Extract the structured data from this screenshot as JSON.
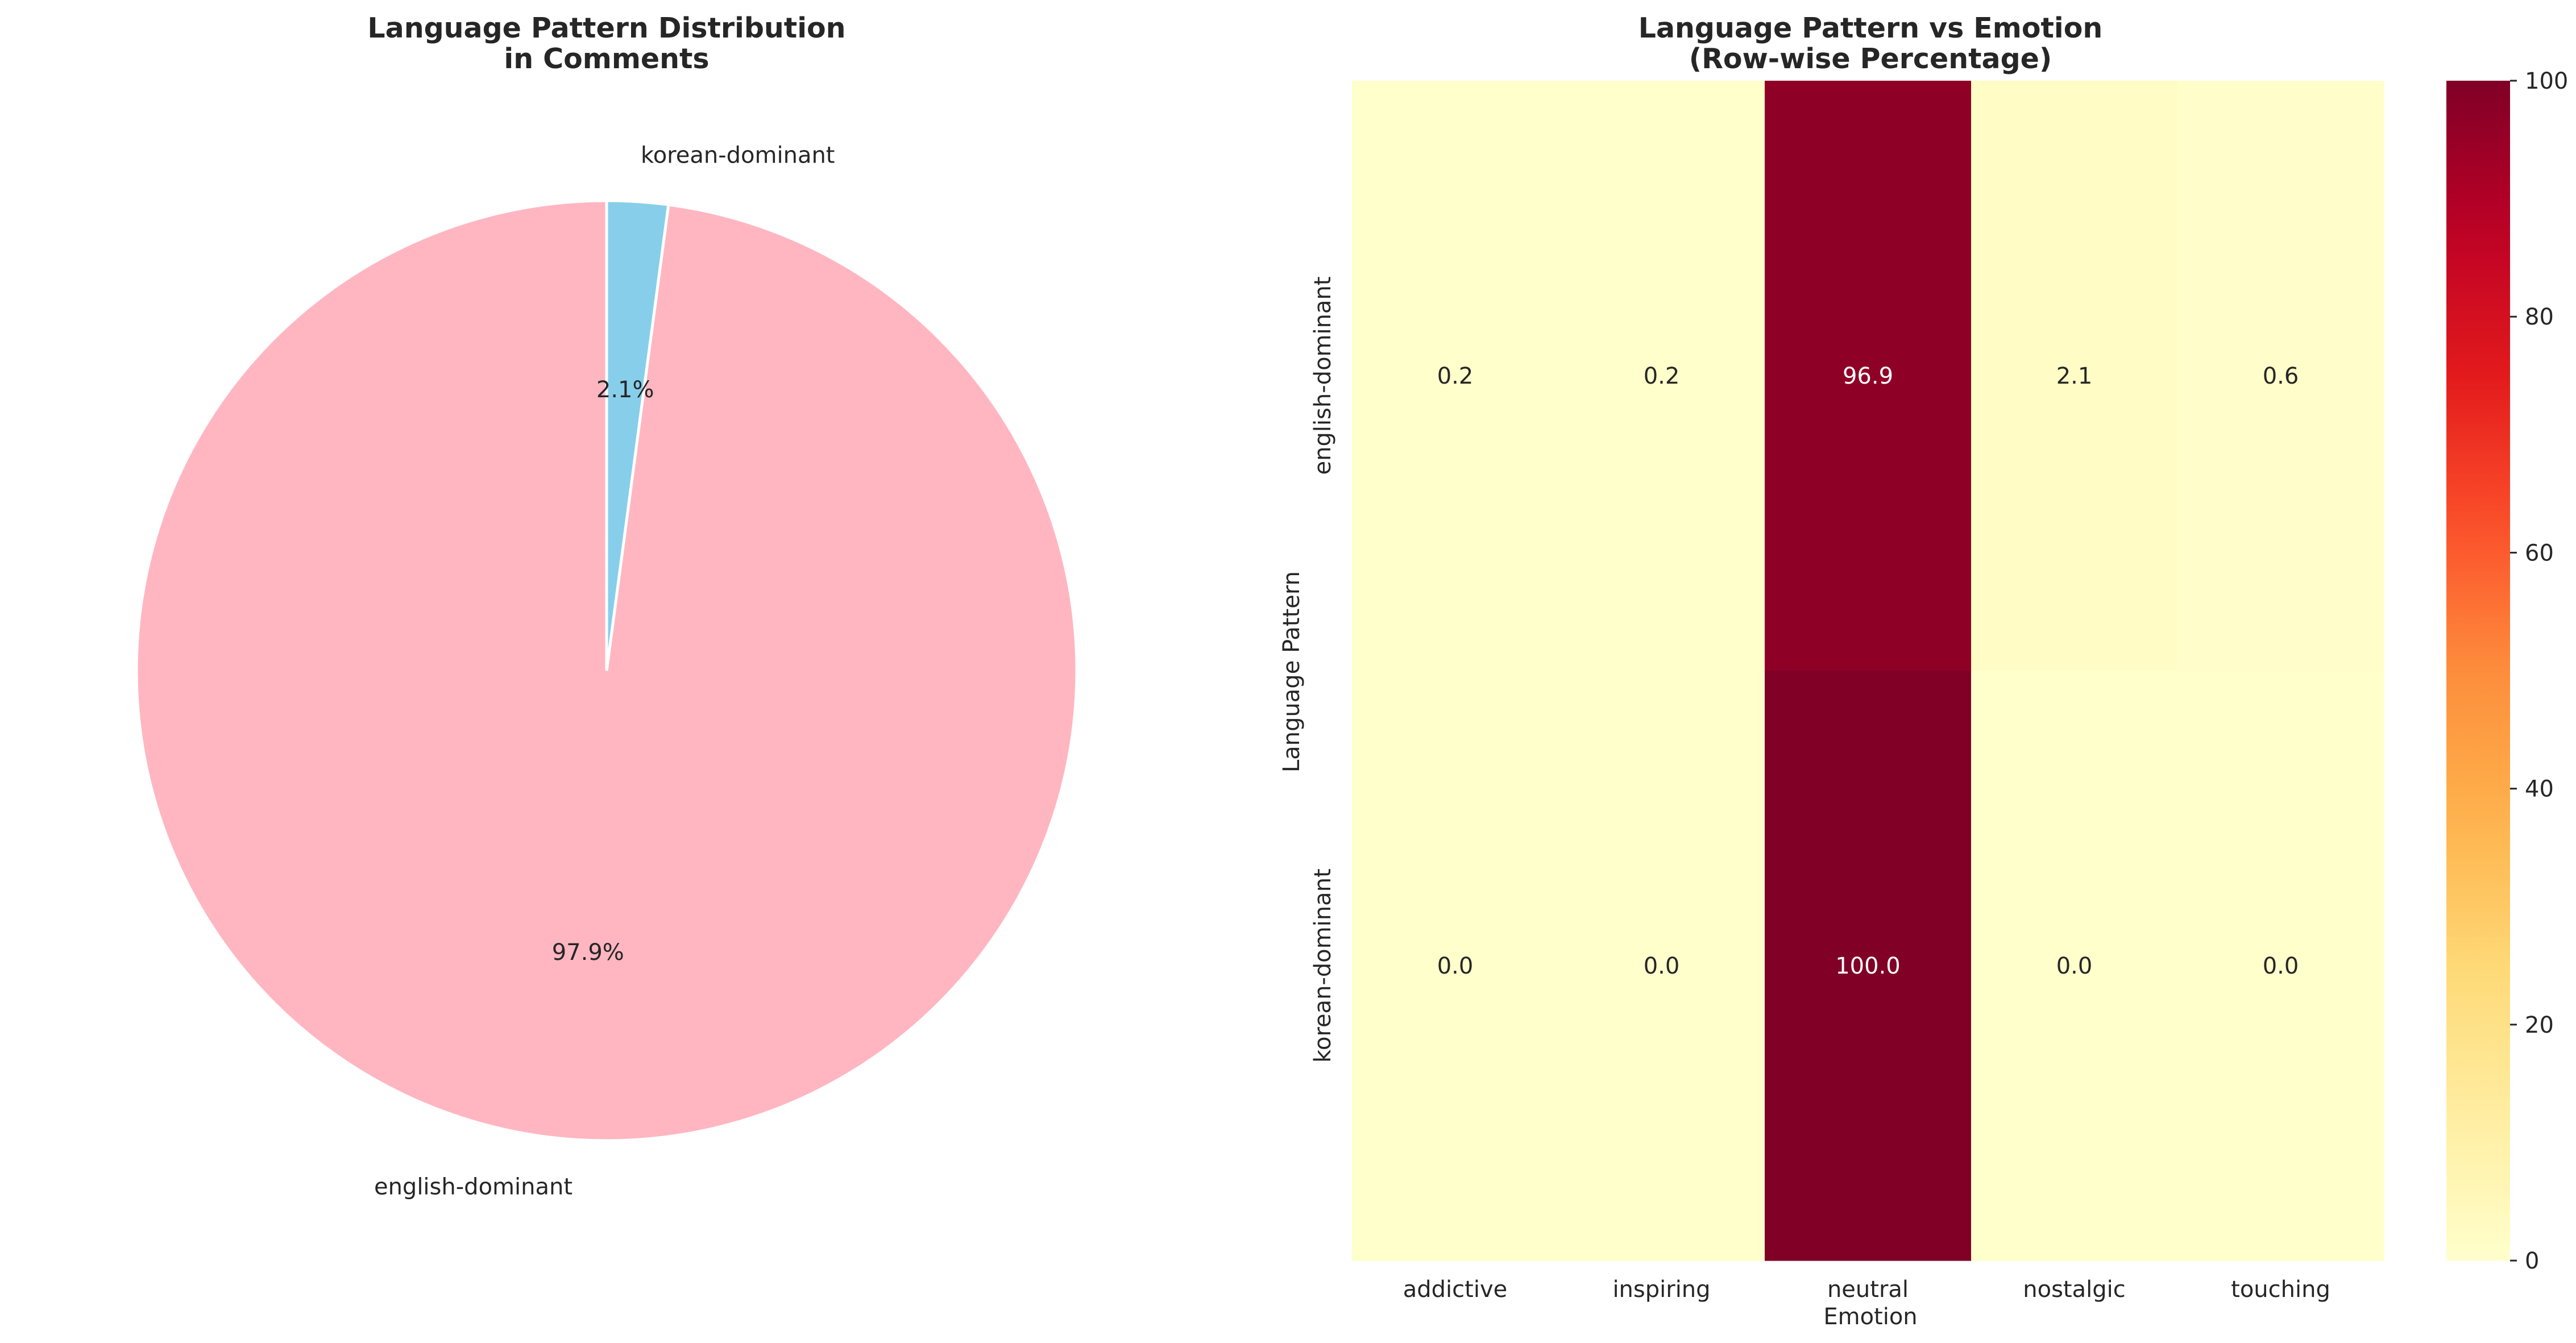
{
  "chart_data": [
    {
      "type": "pie",
      "title_line1": "Language Pattern Distribution",
      "title_line2": "in Comments",
      "slices": [
        {
          "label": "english-dominant",
          "value": 97.9,
          "pct_label": "97.9%",
          "color": "#ffb6c1"
        },
        {
          "label": "korean-dominant",
          "value": 2.1,
          "pct_label": "2.1%",
          "color": "#87ceeb"
        }
      ]
    },
    {
      "type": "heatmap",
      "title_line1": "Language Pattern vs Emotion",
      "title_line2": "(Row-wise Percentage)",
      "xlabel": "Emotion",
      "ylabel": "Language Pattern",
      "columns": [
        "addictive",
        "inspiring",
        "neutral",
        "nostalgic",
        "touching"
      ],
      "rows": [
        "english-dominant",
        "korean-dominant"
      ],
      "values": [
        [
          0.2,
          0.2,
          96.9,
          2.1,
          0.6
        ],
        [
          0.0,
          0.0,
          100.0,
          0.0,
          0.0
        ]
      ],
      "colormap": "YlOrRd",
      "vmin": 0,
      "vmax": 100,
      "colorbar_ticks": [
        0,
        20,
        40,
        60,
        80,
        100
      ]
    }
  ]
}
